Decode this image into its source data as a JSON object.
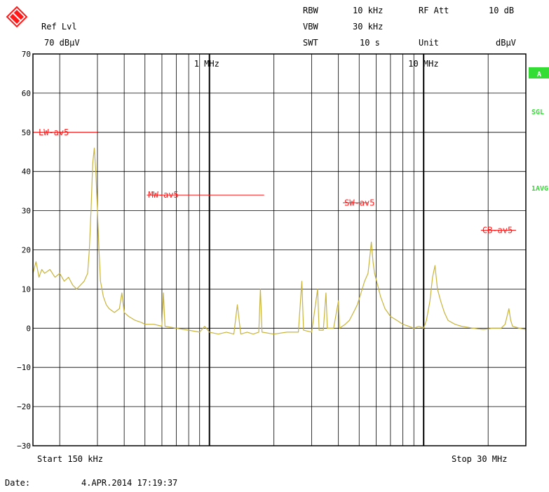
{
  "header": {
    "ref_lvl_label": "Ref Lvl",
    "ref_lvl_value": "70 dBµV",
    "rbw_label": "RBW",
    "rbw_value": "10 kHz",
    "vbw_label": "VBW",
    "vbw_value": "30 kHz",
    "swt_label": "SWT",
    "swt_value": "10 s",
    "rf_att_label": "RF Att",
    "rf_att_value": "10 dB",
    "unit_label": "Unit",
    "unit_value": "dBµV"
  },
  "side_labels": {
    "trace_label": "A",
    "sgl_label": "SGL",
    "avg_label": "1AVG"
  },
  "footer": {
    "start_label": "Start 150 kHz",
    "stop_label": "Stop 30 MHz",
    "date_label": "Date:",
    "date_value": "4.APR.2014  17:19:37"
  },
  "colors": {
    "trace": "#c8b43c",
    "limit": "#ff1a1a",
    "grid": "#000000",
    "badge": "#33dd33"
  },
  "chart_data": {
    "type": "line",
    "x_scale": "log",
    "x_unit": "MHz",
    "xlim": [
      0.15,
      30
    ],
    "ylim": [
      -30,
      70
    ],
    "y_ticks": [
      70,
      60,
      50,
      40,
      30,
      20,
      10,
      0,
      -10,
      -20,
      -30
    ],
    "x_tick_labels": [
      {
        "x": 1,
        "label": "1 MHz"
      },
      {
        "x": 10,
        "label": "10 MHz"
      }
    ],
    "limit_lines": [
      {
        "name": "LW-av5",
        "x_start": 0.15,
        "x_end": 0.3,
        "y": 50
      },
      {
        "name": "MW-av5",
        "x_start": 0.51,
        "x_end": 1.8,
        "y": 34
      },
      {
        "name": "SW-av5",
        "x_start": 4.2,
        "x_end": 5.5,
        "y": 32
      },
      {
        "name": "CB-av5",
        "x_start": 18.5,
        "x_end": 27,
        "y": 25
      }
    ],
    "series": [
      {
        "points": [
          [
            0.15,
            14
          ],
          [
            0.155,
            17
          ],
          [
            0.16,
            13
          ],
          [
            0.165,
            15
          ],
          [
            0.17,
            14
          ],
          [
            0.18,
            15
          ],
          [
            0.19,
            13
          ],
          [
            0.2,
            14
          ],
          [
            0.21,
            12
          ],
          [
            0.22,
            13
          ],
          [
            0.23,
            11
          ],
          [
            0.24,
            10
          ],
          [
            0.25,
            11
          ],
          [
            0.26,
            12
          ],
          [
            0.27,
            14
          ],
          [
            0.275,
            20
          ],
          [
            0.28,
            30
          ],
          [
            0.285,
            42
          ],
          [
            0.29,
            46
          ],
          [
            0.295,
            40
          ],
          [
            0.3,
            30
          ],
          [
            0.305,
            20
          ],
          [
            0.31,
            12
          ],
          [
            0.32,
            8
          ],
          [
            0.33,
            6
          ],
          [
            0.34,
            5
          ],
          [
            0.36,
            4
          ],
          [
            0.38,
            5
          ],
          [
            0.39,
            9
          ],
          [
            0.4,
            4
          ],
          [
            0.42,
            3
          ],
          [
            0.45,
            2
          ],
          [
            0.48,
            1.5
          ],
          [
            0.5,
            1
          ],
          [
            0.55,
            1
          ],
          [
            0.6,
            0.5
          ],
          [
            0.61,
            9
          ],
          [
            0.62,
            0.5
          ],
          [
            0.7,
            0
          ],
          [
            0.8,
            -0.5
          ],
          [
            0.9,
            -1
          ],
          [
            0.95,
            0.5
          ],
          [
            1.0,
            -1
          ],
          [
            1.1,
            -1.5
          ],
          [
            1.2,
            -1
          ],
          [
            1.3,
            -1.5
          ],
          [
            1.35,
            6
          ],
          [
            1.4,
            -1.5
          ],
          [
            1.5,
            -1
          ],
          [
            1.6,
            -1.5
          ],
          [
            1.7,
            -1
          ],
          [
            1.73,
            10
          ],
          [
            1.76,
            -1
          ],
          [
            2.0,
            -1.5
          ],
          [
            2.3,
            -1
          ],
          [
            2.6,
            -1
          ],
          [
            2.7,
            12
          ],
          [
            2.75,
            -0.5
          ],
          [
            3.0,
            -1
          ],
          [
            3.2,
            10
          ],
          [
            3.25,
            -0.5
          ],
          [
            3.4,
            -0.5
          ],
          [
            3.5,
            9
          ],
          [
            3.55,
            0
          ],
          [
            3.8,
            0
          ],
          [
            4.0,
            7
          ],
          [
            4.05,
            0
          ],
          [
            4.3,
            1
          ],
          [
            4.5,
            2
          ],
          [
            4.7,
            4
          ],
          [
            4.9,
            6
          ],
          [
            5.1,
            9
          ],
          [
            5.3,
            12
          ],
          [
            5.5,
            14
          ],
          [
            5.6,
            18
          ],
          [
            5.7,
            22
          ],
          [
            5.8,
            17
          ],
          [
            5.9,
            14
          ],
          [
            6.1,
            11
          ],
          [
            6.3,
            8
          ],
          [
            6.6,
            5
          ],
          [
            7.0,
            3
          ],
          [
            7.5,
            2
          ],
          [
            8.0,
            1
          ],
          [
            8.5,
            0.5
          ],
          [
            9.0,
            0
          ],
          [
            9.5,
            0.5
          ],
          [
            10.0,
            0
          ],
          [
            10.3,
            2
          ],
          [
            10.7,
            7
          ],
          [
            11.0,
            13
          ],
          [
            11.3,
            16
          ],
          [
            11.6,
            10
          ],
          [
            12.0,
            7
          ],
          [
            12.5,
            4
          ],
          [
            13.0,
            2
          ],
          [
            14.0,
            1
          ],
          [
            15.0,
            0.5
          ],
          [
            17.0,
            0
          ],
          [
            19.0,
            -0.3
          ],
          [
            21.0,
            0
          ],
          [
            23.0,
            0
          ],
          [
            24.0,
            1
          ],
          [
            24.5,
            3
          ],
          [
            25.0,
            5
          ],
          [
            25.5,
            2
          ],
          [
            26.0,
            0.5
          ],
          [
            28.0,
            0
          ],
          [
            30.0,
            -0.3
          ]
        ]
      }
    ]
  }
}
